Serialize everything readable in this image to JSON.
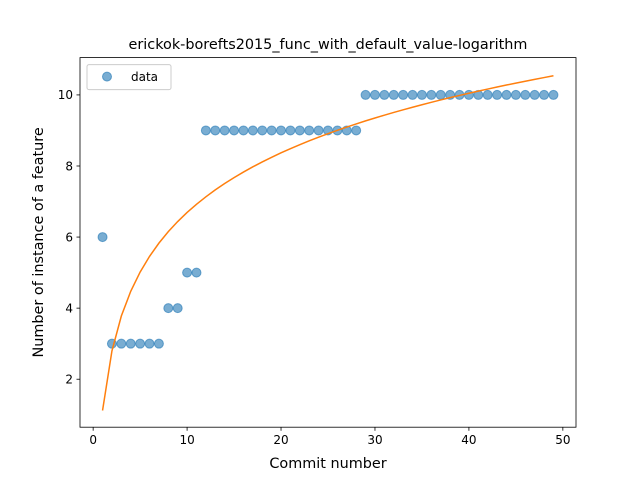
{
  "chart_data": {
    "type": "scatter",
    "title": "erickok-borefts2015_func_with_default_value-logarithm",
    "xlabel": "Commit number",
    "ylabel": "Number of instance of a feature",
    "xlim": [
      -1.4,
      51.4
    ],
    "ylim": [
      0.65,
      11.05
    ],
    "xticks": [
      0,
      10,
      20,
      30,
      40,
      50
    ],
    "yticks": [
      2,
      4,
      6,
      8,
      10
    ],
    "grid": false,
    "legend": {
      "placement": "top-left"
    },
    "series": [
      {
        "name": "data",
        "kind": "scatter",
        "color": "#1f77b4",
        "x": [
          1,
          2,
          3,
          4,
          5,
          6,
          7,
          8,
          9,
          10,
          11,
          12,
          13,
          14,
          15,
          16,
          17,
          18,
          19,
          20,
          21,
          22,
          23,
          24,
          25,
          26,
          27,
          28,
          29,
          30,
          31,
          32,
          33,
          34,
          35,
          36,
          37,
          38,
          39,
          40,
          41,
          42,
          43,
          44,
          45,
          46,
          47,
          48,
          49
        ],
        "y": [
          6,
          3,
          3,
          3,
          3,
          3,
          3,
          4,
          4,
          5,
          5,
          9,
          9,
          9,
          9,
          9,
          9,
          9,
          9,
          9,
          9,
          9,
          9,
          9,
          9,
          9,
          9,
          9,
          10,
          10,
          10,
          10,
          10,
          10,
          10,
          10,
          10,
          10,
          10,
          10,
          10,
          10,
          10,
          10,
          10,
          10,
          10,
          10,
          10
        ]
      },
      {
        "kind": "fit-line",
        "color": "#ff7f0e",
        "model": "logarithmic",
        "a": 1.12,
        "b": 2.42,
        "x_range": [
          1,
          49
        ]
      }
    ]
  }
}
